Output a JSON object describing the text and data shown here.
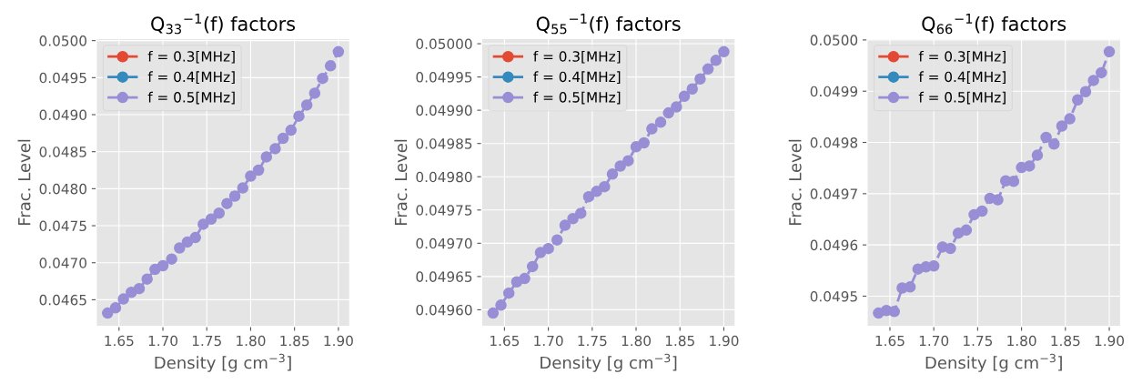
{
  "chart_data": [
    {
      "type": "line",
      "title": "Q$_{33}$$^{−1}$(f) factors",
      "xlabel": "Density [g cm$^{−3}$]",
      "ylabel": "Frac. Level",
      "x": [
        1.637,
        1.646,
        1.655,
        1.664,
        1.673,
        1.682,
        1.691,
        1.7,
        1.71,
        1.719,
        1.728,
        1.737,
        1.746,
        1.755,
        1.764,
        1.773,
        1.782,
        1.791,
        1.8,
        1.809,
        1.818,
        1.828,
        1.837,
        1.846,
        1.855,
        1.864,
        1.873,
        1.882,
        1.891,
        1.9
      ],
      "series": [
        {
          "name": "f = 0.3[MHz]",
          "color": "#e24a33",
          "values": [
            null,
            null,
            null,
            null,
            null,
            null,
            null,
            null,
            null,
            null,
            null,
            null,
            null,
            null,
            null,
            null,
            null,
            null,
            null,
            null,
            null,
            null,
            null,
            null,
            null,
            null,
            null,
            null,
            null,
            null
          ]
        },
        {
          "name": "f = 0.4[MHz]",
          "color": "#348abd",
          "values": [
            null,
            null,
            null,
            null,
            null,
            null,
            null,
            null,
            null,
            null,
            null,
            null,
            null,
            null,
            null,
            null,
            null,
            null,
            null,
            null,
            null,
            null,
            null,
            null,
            null,
            null,
            null,
            null,
            null,
            null
          ]
        },
        {
          "name": "f = 0.5[MHz]",
          "color": "#988ed5",
          "values": [
            0.04632,
            0.04639,
            0.04651,
            0.0466,
            0.04665,
            0.04678,
            0.04691,
            0.04696,
            0.04705,
            0.0472,
            0.04728,
            0.04734,
            0.04752,
            0.04759,
            0.04767,
            0.0478,
            0.0479,
            0.04801,
            0.04817,
            0.04825,
            0.04843,
            0.04854,
            0.04868,
            0.04879,
            0.04898,
            0.04913,
            0.04929,
            0.04949,
            0.04966,
            0.04985
          ]
        }
      ],
      "xlim": [
        1.624,
        1.913
      ],
      "xticks": [
        {
          "value": 1.65,
          "label": "1.65"
        },
        {
          "value": 1.7,
          "label": "1.70"
        },
        {
          "value": 1.75,
          "label": "1.75"
        },
        {
          "value": 1.8,
          "label": "1.80"
        },
        {
          "value": 1.85,
          "label": "1.85"
        },
        {
          "value": 1.9,
          "label": "1.90"
        }
      ],
      "ylim": [
        0.04614,
        0.05003
      ],
      "yticks": [
        {
          "value": 0.0465,
          "label": "0.0465"
        },
        {
          "value": 0.047,
          "label": "0.0470"
        },
        {
          "value": 0.0475,
          "label": "0.0475"
        },
        {
          "value": 0.048,
          "label": "0.0480"
        },
        {
          "value": 0.0485,
          "label": "0.0485"
        },
        {
          "value": 0.049,
          "label": "0.0490"
        },
        {
          "value": 0.0495,
          "label": "0.0495"
        },
        {
          "value": 0.05,
          "label": "0.0500"
        }
      ],
      "grid": true,
      "legend": "top left",
      "marker": "circle",
      "line_style": "dashed"
    },
    {
      "type": "line",
      "title": "Q$_{55}$$^{−1}$(f) factors",
      "xlabel": "Density [g cm$^{−3}$]",
      "ylabel": "Frac. Level",
      "x": [
        1.637,
        1.646,
        1.655,
        1.664,
        1.673,
        1.682,
        1.691,
        1.7,
        1.71,
        1.719,
        1.728,
        1.737,
        1.746,
        1.755,
        1.764,
        1.773,
        1.782,
        1.791,
        1.8,
        1.809,
        1.818,
        1.828,
        1.837,
        1.846,
        1.855,
        1.864,
        1.873,
        1.882,
        1.891,
        1.9
      ],
      "series": [
        {
          "name": "f = 0.3[MHz]",
          "color": "#e24a33",
          "values": [
            null,
            null,
            null,
            null,
            null,
            null,
            null,
            null,
            null,
            null,
            null,
            null,
            null,
            null,
            null,
            null,
            null,
            null,
            null,
            null,
            null,
            null,
            null,
            null,
            null,
            null,
            null,
            null,
            null,
            null
          ]
        },
        {
          "name": "f = 0.4[MHz]",
          "color": "#348abd",
          "values": [
            null,
            null,
            null,
            null,
            null,
            null,
            null,
            null,
            null,
            null,
            null,
            null,
            null,
            null,
            null,
            null,
            null,
            null,
            null,
            null,
            null,
            null,
            null,
            null,
            null,
            null,
            null,
            null,
            null,
            null
          ]
        },
        {
          "name": "f = 0.5[MHz]",
          "color": "#988ed5",
          "values": [
            0.049595,
            0.049607,
            0.049625,
            0.049642,
            0.049647,
            0.049665,
            0.049686,
            0.049692,
            0.049705,
            0.049727,
            0.049737,
            0.049745,
            0.04977,
            0.049778,
            0.049785,
            0.049804,
            0.049816,
            0.049824,
            0.049845,
            0.049851,
            0.049872,
            0.049882,
            0.049896,
            0.049905,
            0.049921,
            0.049932,
            0.049947,
            0.049962,
            0.049975,
            0.049988
          ]
        }
      ],
      "xlim": [
        1.624,
        1.913
      ],
      "xticks": [
        {
          "value": 1.65,
          "label": "1.65"
        },
        {
          "value": 1.7,
          "label": "1.70"
        },
        {
          "value": 1.75,
          "label": "1.75"
        },
        {
          "value": 1.8,
          "label": "1.80"
        },
        {
          "value": 1.85,
          "label": "1.85"
        },
        {
          "value": 1.9,
          "label": "1.90"
        }
      ],
      "ylim": [
        0.049575,
        0.050008
      ],
      "yticks": [
        {
          "value": 0.0496,
          "label": "0.04960"
        },
        {
          "value": 0.04965,
          "label": "0.04965"
        },
        {
          "value": 0.0497,
          "label": "0.04970"
        },
        {
          "value": 0.04975,
          "label": "0.04975"
        },
        {
          "value": 0.0498,
          "label": "0.04980"
        },
        {
          "value": 0.04985,
          "label": "0.04985"
        },
        {
          "value": 0.0499,
          "label": "0.04990"
        },
        {
          "value": 0.04995,
          "label": "0.04995"
        },
        {
          "value": 0.05,
          "label": "0.05000"
        }
      ],
      "grid": true,
      "legend": "top left",
      "marker": "circle",
      "line_style": "dashed"
    },
    {
      "type": "line",
      "title": "Q$_{66}$$^{−1}$(f) factors",
      "xlabel": "Density [g cm$^{−3}$]",
      "ylabel": "Frac. Level",
      "x": [
        1.637,
        1.646,
        1.655,
        1.664,
        1.673,
        1.682,
        1.691,
        1.7,
        1.71,
        1.719,
        1.728,
        1.737,
        1.746,
        1.755,
        1.764,
        1.773,
        1.782,
        1.791,
        1.8,
        1.809,
        1.818,
        1.828,
        1.837,
        1.846,
        1.855,
        1.864,
        1.873,
        1.882,
        1.891,
        1.9
      ],
      "series": [
        {
          "name": "f = 0.3[MHz]",
          "color": "#e24a33",
          "values": [
            null,
            null,
            null,
            null,
            null,
            null,
            null,
            null,
            null,
            null,
            null,
            null,
            null,
            null,
            null,
            null,
            null,
            null,
            null,
            null,
            null,
            null,
            null,
            null,
            null,
            null,
            null,
            null,
            null,
            null
          ]
        },
        {
          "name": "f = 0.4[MHz]",
          "color": "#348abd",
          "values": [
            null,
            null,
            null,
            null,
            null,
            null,
            null,
            null,
            null,
            null,
            null,
            null,
            null,
            null,
            null,
            null,
            null,
            null,
            null,
            null,
            null,
            null,
            null,
            null,
            null,
            null,
            null,
            null,
            null,
            null
          ]
        },
        {
          "name": "f = 0.5[MHz]",
          "color": "#988ed5",
          "values": [
            0.049467,
            0.049472,
            0.04947,
            0.049516,
            0.049518,
            0.049553,
            0.049557,
            0.049559,
            0.049596,
            0.049593,
            0.049623,
            0.049629,
            0.049659,
            0.049666,
            0.049691,
            0.049688,
            0.049725,
            0.049724,
            0.049751,
            0.049754,
            0.049775,
            0.04981,
            0.049797,
            0.049832,
            0.049846,
            0.049883,
            0.049899,
            0.049921,
            0.049936,
            0.049977
          ]
        }
      ],
      "xlim": [
        1.624,
        1.913
      ],
      "xticks": [
        {
          "value": 1.65,
          "label": "1.65"
        },
        {
          "value": 1.7,
          "label": "1.70"
        },
        {
          "value": 1.75,
          "label": "1.75"
        },
        {
          "value": 1.8,
          "label": "1.80"
        },
        {
          "value": 1.85,
          "label": "1.85"
        },
        {
          "value": 1.9,
          "label": "1.90"
        }
      ],
      "ylim": [
        0.049441,
        0.050003
      ],
      "yticks": [
        {
          "value": 0.0495,
          "label": "0.0495"
        },
        {
          "value": 0.0496,
          "label": "0.0496"
        },
        {
          "value": 0.0497,
          "label": "0.0497"
        },
        {
          "value": 0.0498,
          "label": "0.0498"
        },
        {
          "value": 0.0499,
          "label": "0.0499"
        },
        {
          "value": 0.05,
          "label": "0.0500"
        }
      ],
      "grid": true,
      "legend": "top left",
      "marker": "circle",
      "line_style": "dashed"
    }
  ]
}
